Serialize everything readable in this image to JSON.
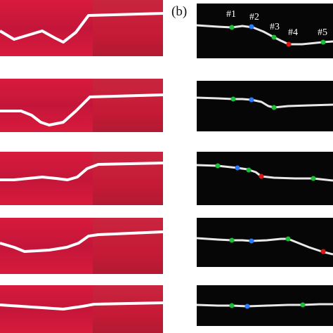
{
  "panel_label": "(b)",
  "marker_labels": [
    "#1",
    "#2",
    "#3",
    "#4",
    "#5"
  ],
  "colors": {
    "page_bg": "#ffffff",
    "red_bg": "#d81a3c",
    "red_bg_right": "#c61a36",
    "dark_bg": "#060606",
    "laser_line": "#ffffff",
    "green": "#1bbf3a",
    "blue": "#2a7bff",
    "red": "#e01515"
  },
  "rows": [
    {
      "index": 1,
      "marker_colors": [
        "green",
        "blue",
        "green",
        "red",
        "green"
      ]
    },
    {
      "index": 2,
      "marker_colors": [
        "green",
        "blue",
        "green"
      ]
    },
    {
      "index": 3,
      "marker_colors": [
        "green",
        "blue",
        "green",
        "red",
        "green"
      ]
    },
    {
      "index": 4,
      "marker_colors": [
        "green",
        "blue",
        "green",
        "red"
      ]
    },
    {
      "index": 5,
      "marker_colors": [
        "green",
        "blue",
        "green"
      ]
    }
  ]
}
